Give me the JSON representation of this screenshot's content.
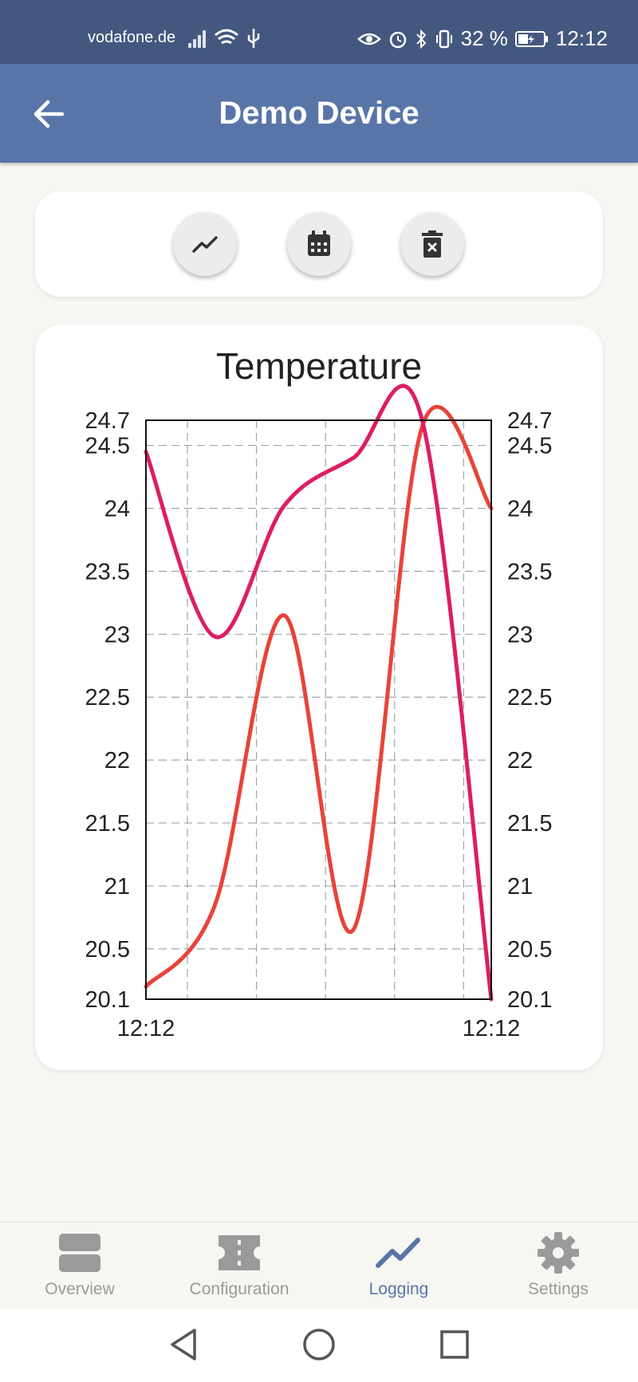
{
  "status_bar": {
    "carrier": "vodafone.de",
    "battery": "32 %",
    "time": "12:12"
  },
  "app_bar": {
    "title": "Demo Device",
    "back_icon": "arrow-left-icon"
  },
  "actions": [
    {
      "name": "chart-button",
      "icon": "chart-line-icon"
    },
    {
      "name": "calendar-button",
      "icon": "calendar-icon"
    },
    {
      "name": "delete-button",
      "icon": "trash-icon"
    }
  ],
  "chart_data": {
    "type": "line",
    "title": "Temperature",
    "y_ticks": [
      "24.7",
      "24.5",
      "24",
      "23.5",
      "23",
      "22.5",
      "22",
      "21.5",
      "21",
      "20.5",
      "20.1"
    ],
    "x_tick_labels": [
      "12:12",
      "12:12"
    ],
    "ylim": [
      20.1,
      24.7
    ],
    "grid": true,
    "series": [
      {
        "color": "#e8433a",
        "points": [
          [
            0,
            20.2
          ],
          [
            0.2,
            20.85
          ],
          [
            0.4,
            23.15
          ],
          [
            0.6,
            20.65
          ],
          [
            0.8,
            24.65
          ],
          [
            1.0,
            24.0
          ]
        ]
      },
      {
        "color": "#dc1e62",
        "points": [
          [
            0,
            24.45
          ],
          [
            0.2,
            22.98
          ],
          [
            0.4,
            24.02
          ],
          [
            0.6,
            24.4
          ],
          [
            0.8,
            24.7
          ],
          [
            1.0,
            20.1
          ]
        ]
      }
    ]
  },
  "bottom_nav": [
    {
      "label": "Overview",
      "icon": "overview-icon",
      "active": false
    },
    {
      "label": "Configuration",
      "icon": "ticket-icon",
      "active": false
    },
    {
      "label": "Logging",
      "icon": "chart-line-icon",
      "active": true
    },
    {
      "label": "Settings",
      "icon": "gear-icon",
      "active": false
    }
  ],
  "colors": {
    "status_bar": "#44587f",
    "app_bar": "#5975a8",
    "accent": "#5975a8",
    "background": "#f7f6f3"
  }
}
